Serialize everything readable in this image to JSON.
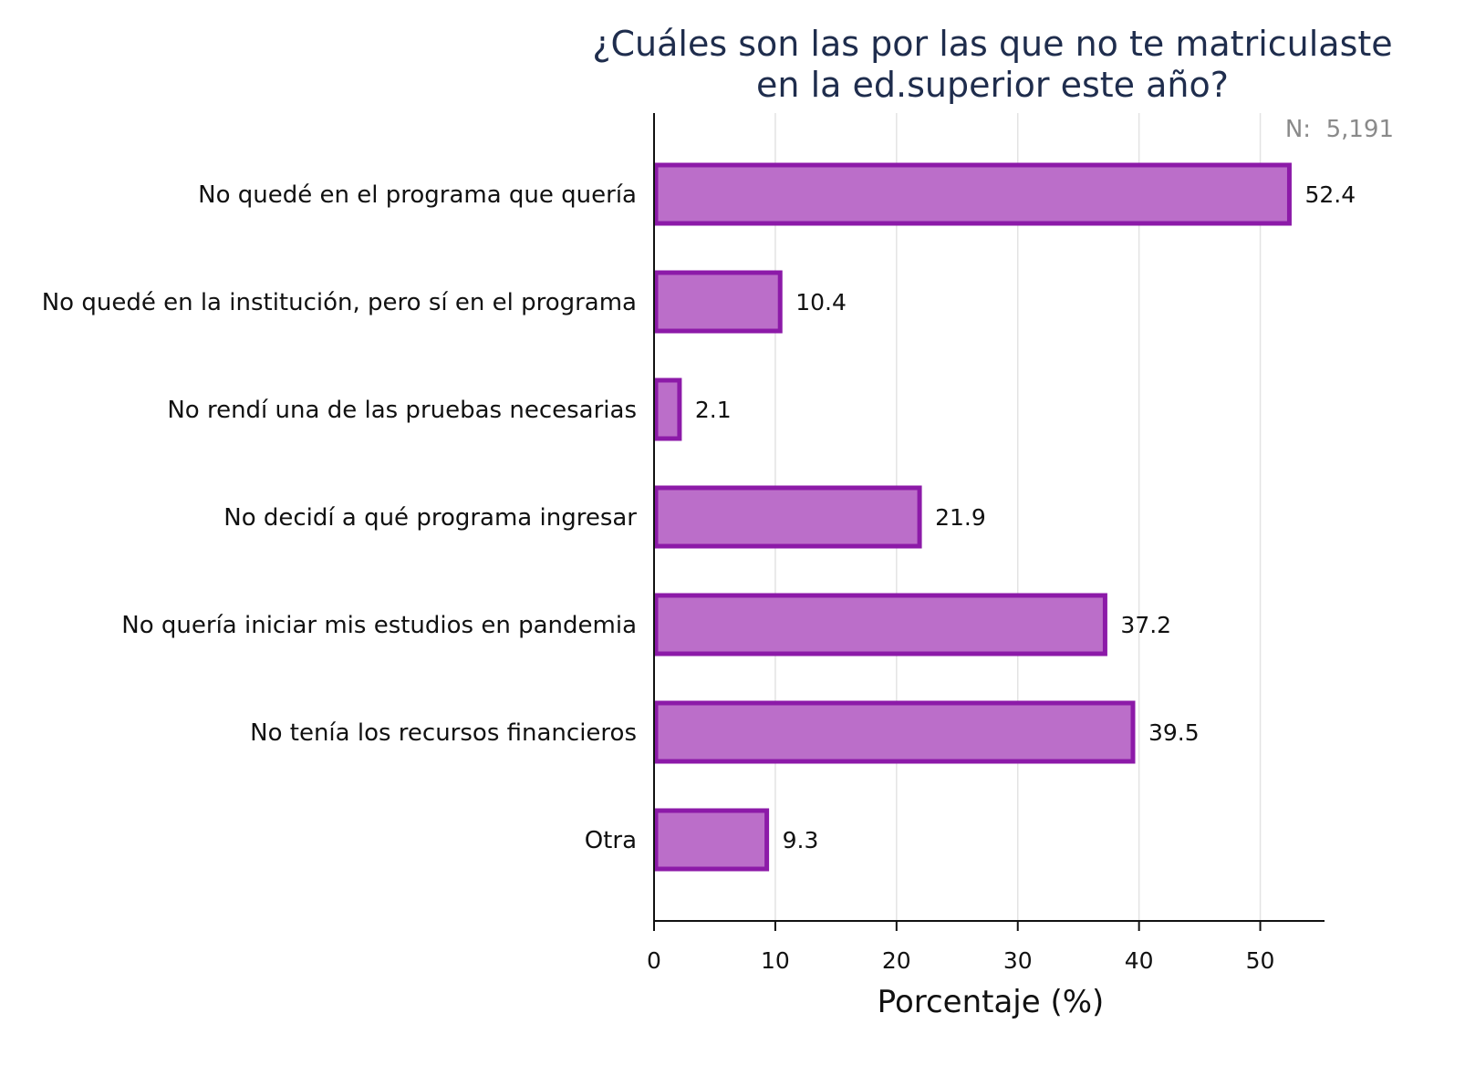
{
  "chart_data": {
    "type": "bar",
    "orientation": "horizontal",
    "title": [
      "¿Cuáles son las por las que no te matriculaste",
      "en la ed.superior este año?"
    ],
    "xlabel": "Porcentaje (%)",
    "ylabel": "",
    "n_label": "N:  5,191",
    "categories": [
      "No quedé en el programa que quería",
      "No quedé en la institución, pero sí en el programa",
      "No rendí una de las pruebas necesarias",
      "No decidí a qué programa ingresar",
      "No quería iniciar mis estudios en pandemia",
      "No tenía los recursos financieros",
      "Otra"
    ],
    "values": [
      52.4,
      10.4,
      2.1,
      21.9,
      37.2,
      39.5,
      9.3
    ],
    "value_labels": [
      "52.4",
      "10.4",
      "2.1",
      "21.9",
      "37.2",
      "39.5",
      "9.3"
    ],
    "xticks": [
      0,
      10,
      20,
      30,
      40,
      50
    ],
    "xlim": [
      0,
      55.3
    ],
    "grid": true,
    "colors": {
      "bar_fill": "#bb6ec9",
      "bar_stroke": "#8c1aa8",
      "grid": "#e3e3e3",
      "axis": "#111111",
      "title": "#1f2d4d",
      "n_label": "#8a8a8a"
    }
  }
}
